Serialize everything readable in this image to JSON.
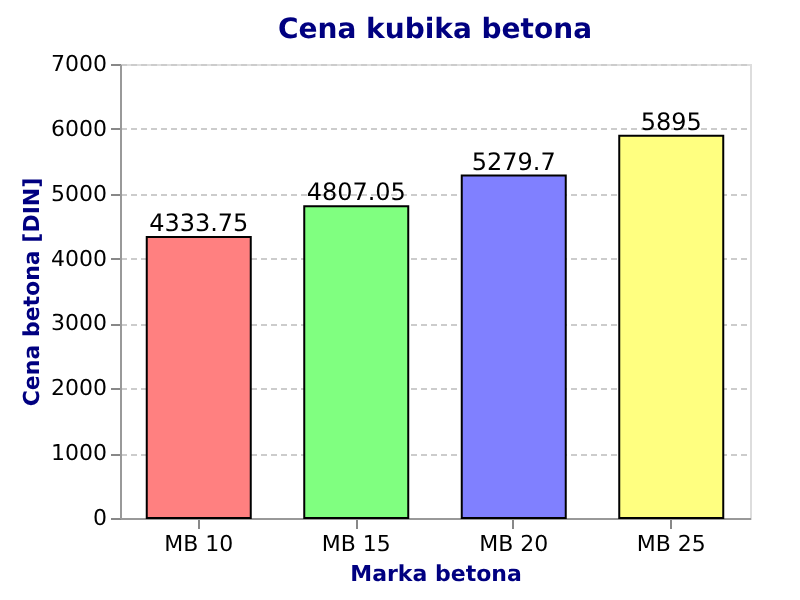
{
  "chart_data": {
    "type": "bar",
    "title": "Cena kubika betona",
    "xlabel": "Marka betona",
    "ylabel": "Cena betona [DIN]",
    "categories": [
      "MB 10",
      "MB 15",
      "MB 20",
      "MB 25"
    ],
    "values": [
      4333.75,
      4807.05,
      5279.7,
      5895
    ],
    "colors": [
      "#ff8080",
      "#80ff80",
      "#8080ff",
      "#ffff80"
    ],
    "ylim": [
      0,
      7000
    ],
    "yticks": [
      0,
      1000,
      2000,
      3000,
      4000,
      5000,
      6000,
      7000
    ],
    "grid": "y",
    "data_labels": true
  }
}
